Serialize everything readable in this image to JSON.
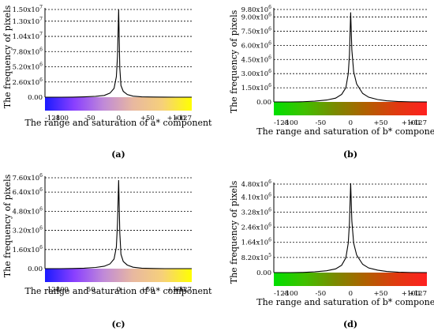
{
  "chart_data": [
    {
      "type": "line",
      "caption": "(a)",
      "xlabel": "The range and saturation of a* component",
      "ylabel": "The frequency of pixels",
      "colorbar": [
        "#1a1aff",
        "#8a40ff",
        "#c08ad8",
        "#e8b8a0",
        "#f6d07a",
        "#ffff00"
      ],
      "x_ticks": [
        {
          "value": -128,
          "label": "-128"
        },
        {
          "value": -100,
          "label": "-100"
        },
        {
          "value": -50,
          "label": "-50"
        },
        {
          "value": 0,
          "label": "0"
        },
        {
          "value": 50,
          "label": "+50"
        },
        {
          "value": 100,
          "label": "+100"
        },
        {
          "value": 127,
          "label": "+127"
        }
      ],
      "y_ticks": [
        {
          "value": 0,
          "mant": "0.00",
          "exp": ""
        },
        {
          "value": 2600000,
          "mant": "2.60x10",
          "exp": "6"
        },
        {
          "value": 5200000,
          "mant": "5.20x10",
          "exp": "6"
        },
        {
          "value": 7800000,
          "mant": "7.80x10",
          "exp": "6"
        },
        {
          "value": 10400000,
          "mant": "1.04x10",
          "exp": "7"
        },
        {
          "value": 13000000,
          "mant": "1.30x10",
          "exp": "7"
        },
        {
          "value": 15000000,
          "mant": "1.50x10",
          "exp": "7"
        }
      ],
      "xlim": [
        -128,
        127
      ],
      "ylim": [
        0,
        15000000
      ],
      "series": [
        {
          "x": [
            -128,
            -100,
            -80,
            -60,
            -40,
            -25,
            -15,
            -8,
            -4,
            -2,
            0,
            2,
            4,
            8,
            15,
            25,
            40,
            60,
            80,
            100,
            127
          ],
          "y": [
            0,
            0,
            10000,
            60000,
            150000,
            300000,
            700000,
            1500000,
            3500000,
            7000000,
            15000000,
            5000000,
            2000000,
            1000000,
            450000,
            180000,
            60000,
            20000,
            5000,
            0,
            0
          ]
        }
      ]
    },
    {
      "type": "line",
      "caption": "(b)",
      "xlabel": "The range and saturation of b* component",
      "ylabel": "The frequency of pixels",
      "colorbar": [
        "#00e000",
        "#40c000",
        "#7a8a00",
        "#b06000",
        "#e03a10",
        "#ff2020"
      ],
      "x_ticks": [
        {
          "value": -128,
          "label": "-128"
        },
        {
          "value": -100,
          "label": "-100"
        },
        {
          "value": -50,
          "label": "-50"
        },
        {
          "value": 0,
          "label": "0"
        },
        {
          "value": 50,
          "label": "+50"
        },
        {
          "value": 100,
          "label": "+100"
        },
        {
          "value": 127,
          "label": "+127"
        }
      ],
      "y_ticks": [
        {
          "value": 0,
          "mant": "0.00",
          "exp": ""
        },
        {
          "value": 1500000,
          "mant": "1.50x10",
          "exp": "6"
        },
        {
          "value": 3000000,
          "mant": "3.00x10",
          "exp": "6"
        },
        {
          "value": 4500000,
          "mant": "4.50x10",
          "exp": "6"
        },
        {
          "value": 6000000,
          "mant": "6.00x10",
          "exp": "6"
        },
        {
          "value": 7500000,
          "mant": "7.50x10",
          "exp": "6"
        },
        {
          "value": 9000000,
          "mant": "9.00x10",
          "exp": "6"
        },
        {
          "value": 9800000,
          "mant": "9.80x10",
          "exp": "6"
        }
      ],
      "xlim": [
        -128,
        127
      ],
      "ylim": [
        0,
        9800000
      ],
      "series": [
        {
          "x": [
            -128,
            -100,
            -80,
            -60,
            -40,
            -25,
            -15,
            -8,
            -4,
            -2,
            0,
            2,
            5,
            10,
            20,
            30,
            45,
            60,
            80,
            100,
            127
          ],
          "y": [
            0,
            0,
            20000,
            80000,
            200000,
            400000,
            800000,
            1500000,
            3000000,
            5000000,
            9500000,
            5500000,
            3200000,
            1900000,
            900000,
            500000,
            250000,
            120000,
            40000,
            10000,
            0
          ]
        }
      ]
    },
    {
      "type": "line",
      "caption": "(c)",
      "xlabel": "The range and saturation of a* component",
      "ylabel": "The frequency of pixels",
      "colorbar": [
        "#1a1aff",
        "#8a40ff",
        "#c08ad8",
        "#e8b8a0",
        "#f6d07a",
        "#ffff00"
      ],
      "x_ticks": [
        {
          "value": -128,
          "label": "-128"
        },
        {
          "value": -100,
          "label": "-100"
        },
        {
          "value": -50,
          "label": "-50"
        },
        {
          "value": 0,
          "label": "0"
        },
        {
          "value": 50,
          "label": "+50"
        },
        {
          "value": 100,
          "label": "+100"
        },
        {
          "value": 127,
          "label": "+127"
        }
      ],
      "y_ticks": [
        {
          "value": 0,
          "mant": "0.00",
          "exp": ""
        },
        {
          "value": 1600000,
          "mant": "1.60x10",
          "exp": "6"
        },
        {
          "value": 3200000,
          "mant": "3.20x10",
          "exp": "6"
        },
        {
          "value": 4800000,
          "mant": "4.80x10",
          "exp": "6"
        },
        {
          "value": 6400000,
          "mant": "6.40x10",
          "exp": "6"
        },
        {
          "value": 7600000,
          "mant": "7.60x10",
          "exp": "6"
        }
      ],
      "xlim": [
        -128,
        127
      ],
      "ylim": [
        0,
        7600000
      ],
      "series": [
        {
          "x": [
            -128,
            -100,
            -80,
            -60,
            -40,
            -25,
            -15,
            -8,
            -4,
            -2,
            0,
            2,
            4,
            8,
            15,
            25,
            40,
            60,
            80,
            100,
            127
          ],
          "y": [
            0,
            0,
            10000,
            40000,
            100000,
            200000,
            400000,
            800000,
            1800000,
            3800000,
            7400000,
            3000000,
            1200000,
            600000,
            300000,
            120000,
            40000,
            10000,
            0,
            0,
            0
          ]
        }
      ]
    },
    {
      "type": "line",
      "caption": "(d)",
      "xlabel": "The range and saturation of b* component",
      "ylabel": "The frequency of pixels",
      "colorbar": [
        "#00e000",
        "#40c000",
        "#7a8a00",
        "#b06000",
        "#e03a10",
        "#ff2020"
      ],
      "x_ticks": [
        {
          "value": -128,
          "label": "-128"
        },
        {
          "value": -100,
          "label": "-100"
        },
        {
          "value": -50,
          "label": "-50"
        },
        {
          "value": 0,
          "label": "0"
        },
        {
          "value": 50,
          "label": "+50"
        },
        {
          "value": 100,
          "label": "+100"
        },
        {
          "value": 127,
          "label": "+127"
        }
      ],
      "y_ticks": [
        {
          "value": 0,
          "mant": "0.00",
          "exp": ""
        },
        {
          "value": 820000,
          "mant": "8.20x10",
          "exp": "5"
        },
        {
          "value": 1640000,
          "mant": "1.64x10",
          "exp": "6"
        },
        {
          "value": 2460000,
          "mant": "2.46x10",
          "exp": "6"
        },
        {
          "value": 3280000,
          "mant": "3.28x10",
          "exp": "6"
        },
        {
          "value": 4100000,
          "mant": "4.10x10",
          "exp": "6"
        },
        {
          "value": 4800000,
          "mant": "4.80x10",
          "exp": "6"
        }
      ],
      "xlim": [
        -128,
        127
      ],
      "ylim": [
        0,
        4800000
      ],
      "series": [
        {
          "x": [
            -128,
            -100,
            -80,
            -60,
            -40,
            -25,
            -15,
            -8,
            -4,
            -2,
            0,
            2,
            5,
            10,
            20,
            30,
            45,
            60,
            80,
            100,
            127
          ],
          "y": [
            0,
            0,
            10000,
            40000,
            100000,
            200000,
            400000,
            800000,
            1600000,
            2700000,
            4850000,
            2800000,
            1600000,
            950000,
            450000,
            250000,
            130000,
            60000,
            20000,
            5000,
            0
          ]
        }
      ]
    }
  ]
}
